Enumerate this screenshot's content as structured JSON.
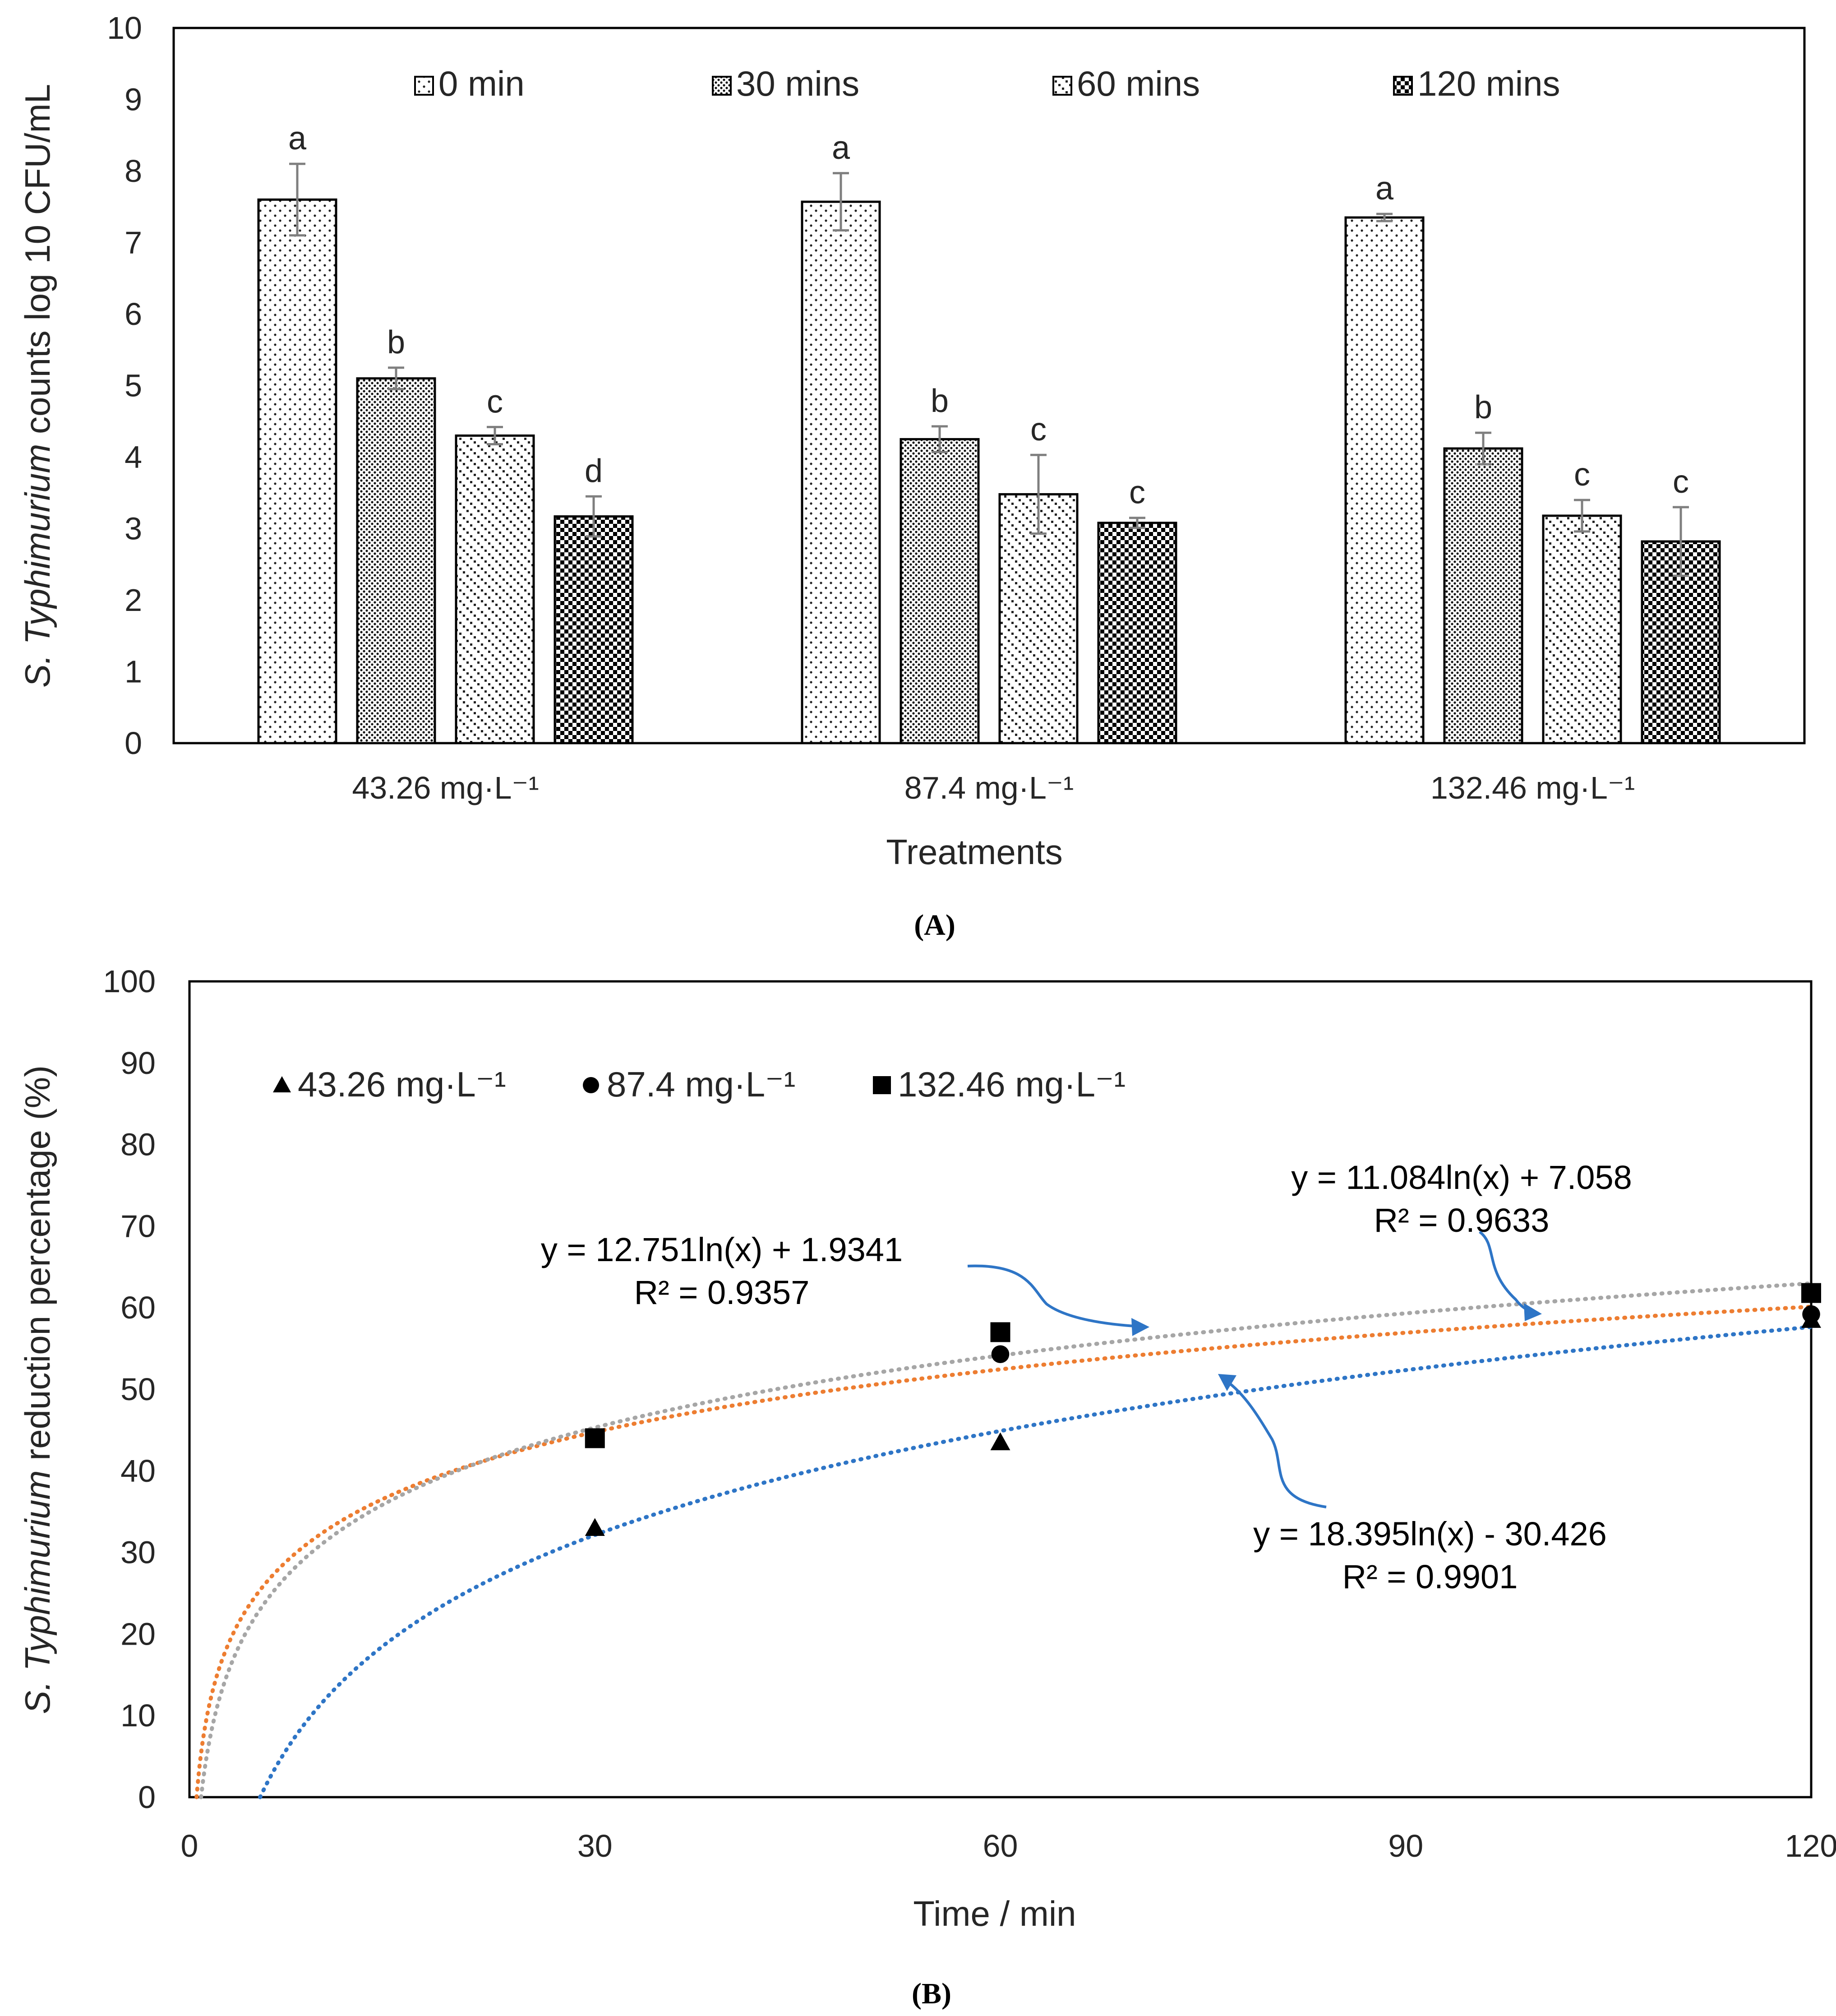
{
  "chart_data": [
    {
      "type": "bar",
      "panel_label": "(A)",
      "title": "",
      "ylabel_italic": "S. Typhimurium",
      "ylabel_rest": " counts log 10 CFU/mL",
      "xlabel": "Treatments",
      "ylim": [
        0,
        10
      ],
      "yticks": [
        "0",
        "1",
        "2",
        "3",
        "4",
        "5",
        "6",
        "7",
        "8",
        "9",
        "10"
      ],
      "categories": [
        "43.26 mg·L⁻¹",
        "87.4 mg·L⁻¹",
        "132.46 mg·L⁻¹"
      ],
      "legend_position": "top",
      "series": [
        {
          "name": "0 min",
          "pattern": "sparse-dots",
          "values": [
            7.6,
            7.57,
            7.35
          ],
          "errors": [
            0.5,
            0.4,
            0.05
          ],
          "letters": [
            "a",
            "a",
            "a"
          ]
        },
        {
          "name": "30 mins",
          "pattern": "dense-dots",
          "values": [
            5.1,
            4.25,
            4.12
          ],
          "errors": [
            0.15,
            0.18,
            0.22
          ],
          "letters": [
            "b",
            "b",
            "b"
          ]
        },
        {
          "name": "60 mins",
          "pattern": "diagonal-dots",
          "values": [
            4.3,
            3.48,
            3.18
          ],
          "errors": [
            0.12,
            0.55,
            0.22
          ],
          "letters": [
            "c",
            "c",
            "c"
          ]
        },
        {
          "name": "120 mins",
          "pattern": "checker",
          "values": [
            3.17,
            3.08,
            2.82
          ],
          "errors": [
            0.28,
            0.07,
            0.48
          ],
          "letters": [
            "d",
            "c",
            "c"
          ]
        }
      ]
    },
    {
      "type": "scatter",
      "panel_label": "(B)",
      "title": "",
      "ylabel_italic": "S. Typhimurium",
      "ylabel_rest": " reduction percentage (%)",
      "xlabel": "Time / min",
      "xlim": [
        0,
        120
      ],
      "ylim": [
        0,
        100
      ],
      "xticks": [
        "0",
        "30",
        "60",
        "90",
        "120"
      ],
      "yticks": [
        "0",
        "10",
        "20",
        "30",
        "40",
        "50",
        "60",
        "70",
        "80",
        "90",
        "100"
      ],
      "legend_position": "top-left",
      "series": [
        {
          "name": "43.26 mg·L⁻¹",
          "marker": "triangle",
          "x": [
            30,
            60,
            120
          ],
          "y": [
            33,
            43.5,
            58.5
          ],
          "trend_color": "#2e75c6",
          "trend": {
            "a": 18.395,
            "b": -30.426
          },
          "equation": "y = 18.395ln(x) - 30.426",
          "r2": "R² = 0.9901"
        },
        {
          "name": "87.4 mg·L⁻¹",
          "marker": "circle",
          "x": [
            30,
            60,
            120
          ],
          "y": [
            44,
            54.3,
            59.2
          ],
          "trend_color": "#ed7d31",
          "trend": {
            "a": 11.084,
            "b": 7.058
          },
          "equation": "y = 11.084ln(x) + 7.058",
          "r2": "R² = 0.9633"
        },
        {
          "name": "132.46 mg·L⁻¹",
          "marker": "square",
          "x": [
            30,
            60,
            120
          ],
          "y": [
            44,
            57,
            61.8
          ],
          "trend_color": "#a6a6a6",
          "trend": {
            "a": 12.751,
            "b": 1.9341
          },
          "equation": "y = 12.751ln(x) + 1.9341",
          "r2": "R² = 0.9357"
        }
      ]
    }
  ]
}
